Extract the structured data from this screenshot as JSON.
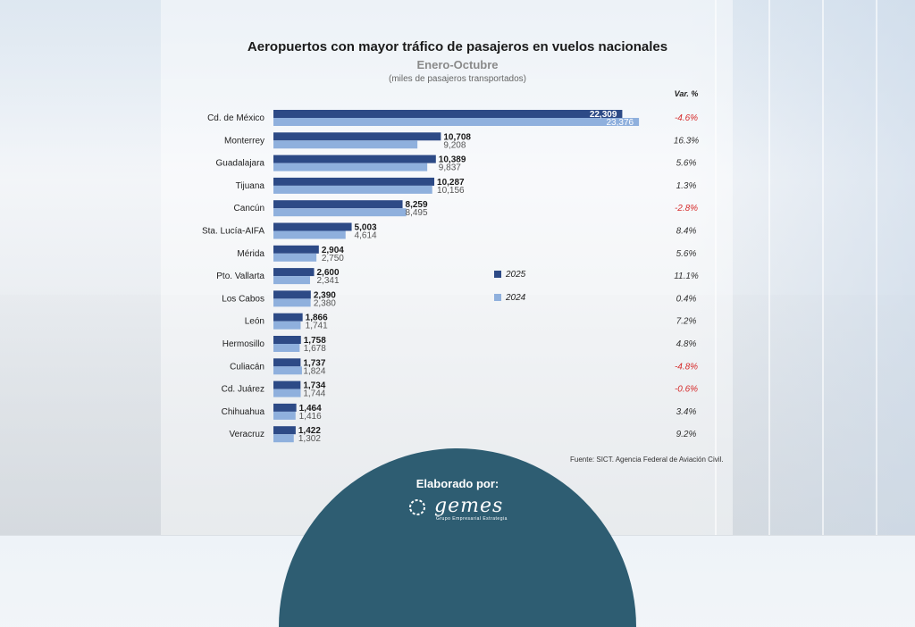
{
  "chart_data": {
    "type": "bar",
    "orientation": "horizontal",
    "title": "Aeropuertos con mayor tráfico de pasajeros en vuelos nacionales",
    "subtitle": "Enero-Octubre",
    "units": "(miles de pasajeros transportados)",
    "categories": [
      "Cd. de México",
      "Monterrey",
      "Guadalajara",
      "Tijuana",
      "Cancún",
      "Sta. Lucía-AIFA",
      "Mérida",
      "Pto. Vallarta",
      "Los Cabos",
      "León",
      "Hermosillo",
      "Culiacán",
      "Cd. Juárez",
      "Chihuahua",
      "Veracruz"
    ],
    "series": [
      {
        "name": "2025",
        "color": "#2d4a86",
        "values": [
          22309,
          10708,
          10389,
          10287,
          8259,
          5003,
          2904,
          2600,
          2390,
          1866,
          1758,
          1737,
          1734,
          1464,
          1422
        ],
        "labels": [
          "22,309",
          "10,708",
          "10,389",
          "10,287",
          "8,259",
          "5,003",
          "2,904",
          "2,600",
          "2,390",
          "1,866",
          "1,758",
          "1,737",
          "1,734",
          "1,464",
          "1,422"
        ]
      },
      {
        "name": "2024",
        "color": "#8fb0dd",
        "values": [
          23376,
          9208,
          9837,
          10156,
          8495,
          4614,
          2750,
          2341,
          2380,
          1741,
          1678,
          1824,
          1744,
          1416,
          1302
        ],
        "labels": [
          "23,376",
          "9,208",
          "9,837",
          "10,156",
          "8,495",
          "4,614",
          "2,750",
          "2,341",
          "2,380",
          "1,741",
          "1,678",
          "1,824",
          "1,744",
          "1,416",
          "1,302"
        ]
      }
    ],
    "variation_header": "Var. %",
    "variation": [
      "-4.6%",
      "16.3%",
      "5.6%",
      "1.3%",
      "-2.8%",
      "8.4%",
      "5.6%",
      "11.1%",
      "0.4%",
      "7.2%",
      "4.8%",
      "-4.8%",
      "-0.6%",
      "3.4%",
      "9.2%"
    ],
    "negative_color": "#d62c2c",
    "legend_placement": "right-middle",
    "grid": false
  },
  "source": "Fuente: SICT. Agencia Federal de Aviación Civil.",
  "footer": {
    "label": "Elaborado por:",
    "logo_text": "gemes",
    "logo_tagline": "Grupo Empresarial Estrategia",
    "bg_color": "#2e5d72"
  }
}
